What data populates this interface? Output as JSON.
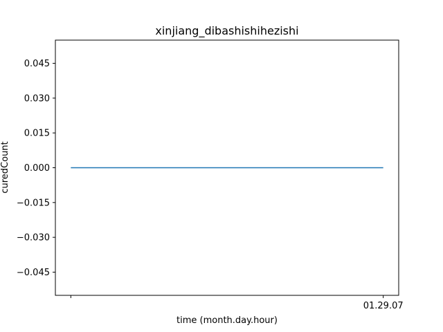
{
  "chart_data": {
    "type": "line",
    "title": "xinjiang_dibashishihezishi",
    "xlabel": "time (month.day.hour)",
    "ylabel": "curedCount",
    "x_tick_labels": [
      "",
      "01.29.07"
    ],
    "y_ticks": [
      -0.045,
      -0.03,
      -0.015,
      0.0,
      0.015,
      0.03,
      0.045
    ],
    "y_tick_labels": [
      "−0.045",
      "−0.030",
      "−0.015",
      "0.000",
      "0.015",
      "0.030",
      "0.045"
    ],
    "ylim": [
      -0.055,
      0.055
    ],
    "grid": false,
    "series": [
      {
        "x": [
          0,
          1
        ],
        "values": [
          0,
          0
        ],
        "color": "#1f77b4"
      }
    ]
  }
}
